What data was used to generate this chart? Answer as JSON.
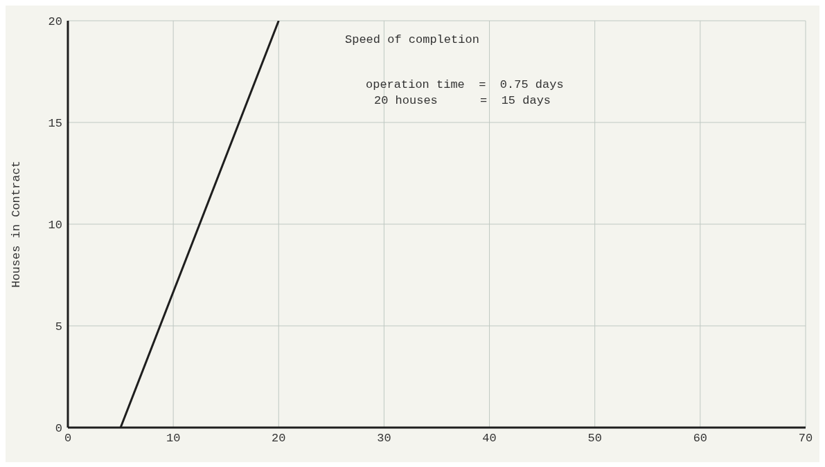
{
  "chart_data": {
    "type": "line",
    "ylabel": "Houses in Contract",
    "annotations": [
      "Speed of completion",
      "operation time  =  0.75 days",
      "20 houses      =  15 days"
    ],
    "x": [
      5,
      20
    ],
    "series": [
      {
        "color": "#1e1e1e",
        "values": [
          0,
          20
        ]
      }
    ],
    "xlim": [
      0,
      70
    ],
    "xticks": [
      0,
      10,
      20,
      30,
      40,
      50,
      60,
      70
    ],
    "ylim": [
      0,
      20
    ],
    "yticks": [
      0,
      5,
      10,
      15,
      20
    ],
    "grid": true,
    "legend": false,
    "marker": "none",
    "line_style": "solid"
  }
}
